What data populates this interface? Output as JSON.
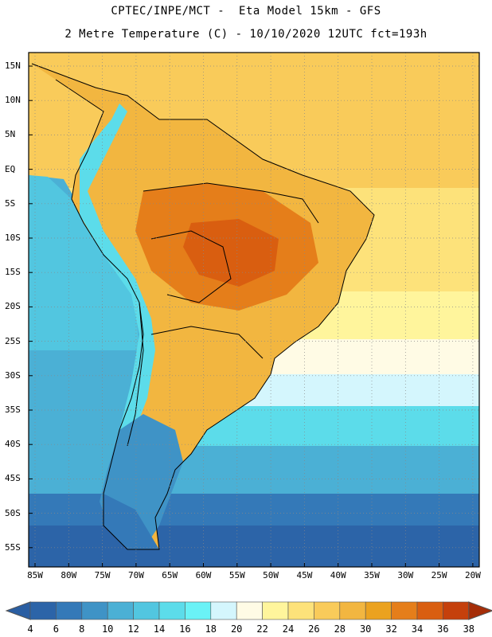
{
  "title_line1": "CPTEC/INPE/MCT -  Eta Model 15km - GFS",
  "title_line2": "2 Metre Temperature (C) - 10/10/2020 12UTC fct=193h",
  "lat_labels": [
    "15N",
    "10N",
    "5N",
    "EQ",
    "5S",
    "10S",
    "15S",
    "20S",
    "25S",
    "30S",
    "35S",
    "40S",
    "45S",
    "50S",
    "55S"
  ],
  "lon_labels": [
    "85W",
    "80W",
    "75W",
    "70W",
    "65W",
    "60W",
    "55W",
    "50W",
    "45W",
    "40W",
    "35W",
    "30W",
    "25W",
    "20W"
  ],
  "colorbar": {
    "ticks": [
      "4",
      "6",
      "8",
      "10",
      "12",
      "14",
      "16",
      "18",
      "20",
      "22",
      "24",
      "26",
      "28",
      "30",
      "32",
      "34",
      "36",
      "38"
    ],
    "colors": [
      "#2c64a8",
      "#3479b8",
      "#3f93c6",
      "#4bb0d5",
      "#52c6e0",
      "#5cdcea",
      "#6af2f6",
      "#d4f6fd",
      "#fffbe5",
      "#fff59c",
      "#fde27a",
      "#f9cb5a",
      "#f2b640",
      "#eba21f",
      "#e57e1a",
      "#d95e10",
      "#c5400c",
      "#a52d08"
    ],
    "under_color": "#2a5ea2",
    "over_color": "#a52d08"
  },
  "map": {
    "ocean_colors": [
      "#2c64a8",
      "#3479b8",
      "#3f93c6",
      "#4bb0d5",
      "#52c6e0",
      "#5cdcea",
      "#6af2f6",
      "#d4f6fd",
      "#fffbe5",
      "#fff59c",
      "#fde27a",
      "#f9cb5a"
    ],
    "land_colors": [
      "#eba21f",
      "#e57e1a",
      "#d95e10",
      "#f2b640",
      "#f9cb5a"
    ],
    "andes_color": "#5cdcea",
    "patagonia_color": "#3479b8",
    "border_color": "#000000"
  }
}
